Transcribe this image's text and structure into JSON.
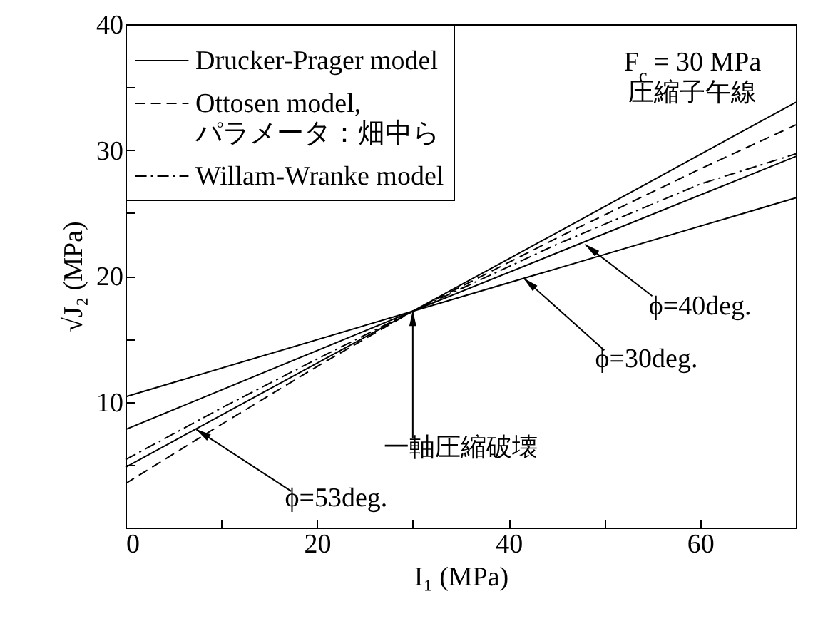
{
  "chart_data": {
    "type": "line",
    "xlabel": "I₁ (MPa)",
    "ylabel": "√J₂ (MPa)",
    "xlim": [
      0,
      70
    ],
    "ylim": [
      0,
      40
    ],
    "xticks": [
      0,
      {
        "value": 10,
        "label": null
      },
      20,
      {
        "value": 30,
        "label": null
      },
      40,
      {
        "value": 50,
        "label": null
      },
      60
    ],
    "yticks": [
      {
        "value": 5,
        "label": null
      },
      10,
      {
        "value": 15,
        "label": null
      },
      20,
      {
        "value": 25,
        "label": null
      },
      30,
      {
        "value": 35,
        "label": null
      },
      40
    ],
    "legend": "top left",
    "series": [
      {
        "name": "Drucker-Prager model",
        "color": "#000000",
        "line_style": "solid",
        "x": [
          0,
          30,
          70
        ],
        "values": [
          10.4,
          17.2,
          26.2
        ]
      },
      {
        "color": "#000000",
        "line_style": "solid",
        "x": [
          0,
          30,
          70
        ],
        "values": [
          7.8,
          17.2,
          29.5
        ]
      },
      {
        "color": "#000000",
        "line_style": "solid",
        "x": [
          0,
          30,
          70
        ],
        "values": [
          4.8,
          17.2,
          33.8
        ]
      },
      {
        "name": "Ottosen model,\nパラメータ：畑中ら",
        "color": "#000000",
        "line_style": "dashed",
        "x": [
          0,
          10,
          20,
          30,
          45,
          60,
          70
        ],
        "values": [
          3.5,
          8.2,
          12.8,
          17.2,
          23.0,
          28.5,
          32.0
        ]
      },
      {
        "name": "Willam-Wranke model",
        "color": "#000000",
        "line_style": "dashdot",
        "x": [
          0,
          10,
          20,
          30,
          45,
          60,
          70
        ],
        "values": [
          5.4,
          9.5,
          13.4,
          17.2,
          22.5,
          27.3,
          29.7
        ]
      }
    ],
    "annotations": [
      "F$_{c}$ = 30 MPa",
      "圧縮子午線",
      {
        "text": "一軸圧縮破壊",
        "x": 30,
        "y": 17.2
      },
      {
        "text": "ϕ=53deg.",
        "x": 7.4,
        "y": 7.8
      },
      {
        "text": "ϕ=40deg.",
        "x": 48,
        "y": 22.5
      },
      {
        "text": "ϕ=30deg.",
        "x": 41.6,
        "y": 19.8
      }
    ]
  }
}
